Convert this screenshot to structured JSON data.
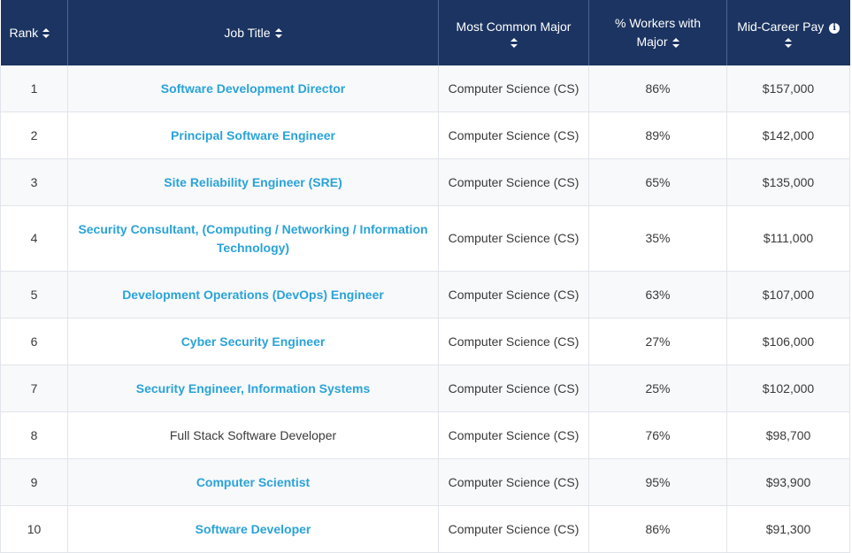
{
  "table": {
    "headers": {
      "rank": "Rank",
      "job_title": "Job Title",
      "major": "Most Common Major",
      "workers_line1": "% Workers with",
      "workers_line2": "Major",
      "pay": "Mid-Career Pay"
    },
    "icons": {
      "sort": "sort-arrows-icon",
      "info": "info-icon",
      "info_glyph": "i"
    },
    "colors": {
      "header_bg": "#1b3461",
      "link": "#2aa3d8"
    },
    "rows": [
      {
        "rank": "1",
        "title": "Software Development Director",
        "major": "Computer Science (CS)",
        "workers": "86%",
        "pay": "$157,000"
      },
      {
        "rank": "2",
        "title": "Principal Software Engineer",
        "major": "Computer Science (CS)",
        "workers": "89%",
        "pay": "$142,000"
      },
      {
        "rank": "3",
        "title": "Site Reliability Engineer (SRE)",
        "major": "Computer Science (CS)",
        "workers": "65%",
        "pay": "$135,000"
      },
      {
        "rank": "4",
        "title": "Security Consultant, (Computing / Networking / Information Technology)",
        "major": "Computer Science (CS)",
        "workers": "35%",
        "pay": "$111,000"
      },
      {
        "rank": "5",
        "title": "Development Operations (DevOps) Engineer",
        "major": "Computer Science (CS)",
        "workers": "63%",
        "pay": "$107,000"
      },
      {
        "rank": "6",
        "title": "Cyber Security Engineer",
        "major": "Computer Science (CS)",
        "workers": "27%",
        "pay": "$106,000"
      },
      {
        "rank": "7",
        "title": "Security Engineer, Information Systems",
        "major": "Computer Science (CS)",
        "workers": "25%",
        "pay": "$102,000"
      },
      {
        "rank": "8",
        "title": "Full Stack Software Developer",
        "major": "Computer Science (CS)",
        "workers": "76%",
        "pay": "$98,700"
      },
      {
        "rank": "9",
        "title": "Computer Scientist",
        "major": "Computer Science (CS)",
        "workers": "95%",
        "pay": "$93,900"
      },
      {
        "rank": "10",
        "title": "Software Developer",
        "major": "Computer Science (CS)",
        "workers": "86%",
        "pay": "$91,300"
      }
    ]
  }
}
